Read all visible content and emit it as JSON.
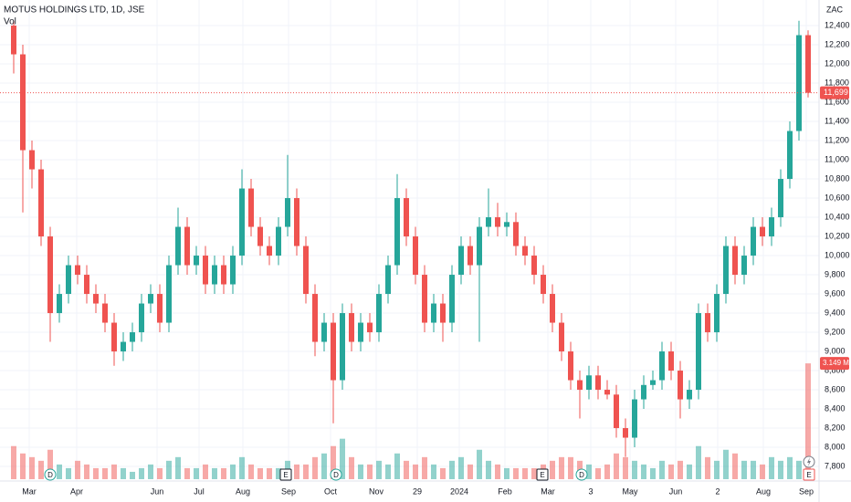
{
  "chart_data": {
    "type": "candlestick",
    "title": "MOTUS HOLDINGS LTD, 1D, JSE",
    "volume_label": "Vol",
    "currency": "ZAC",
    "up_color": "#26a69a",
    "down_color": "#ef5350",
    "grid": true,
    "xlim": [
      -1.5,
      88.2
    ],
    "xticks": [
      {
        "value": 1.7,
        "label": "Mar"
      },
      {
        "value": 6.9,
        "label": "Apr"
      },
      {
        "value": 15.7,
        "label": "Jun"
      },
      {
        "value": 20.3,
        "label": "Jul"
      },
      {
        "value": 25.1,
        "label": "Aug"
      },
      {
        "value": 30.1,
        "label": "Sep"
      },
      {
        "value": 34.7,
        "label": "Oct"
      },
      {
        "value": 39.7,
        "label": "Nov"
      },
      {
        "value": 44.2,
        "label": "29"
      },
      {
        "value": 48.8,
        "label": "2024"
      },
      {
        "value": 53.8,
        "label": "Feb"
      },
      {
        "value": 58.5,
        "label": "Mar"
      },
      {
        "value": 63.2,
        "label": "3"
      },
      {
        "value": 67.5,
        "label": "May"
      },
      {
        "value": 72.5,
        "label": "Jun"
      },
      {
        "value": 77.1,
        "label": "2"
      },
      {
        "value": 82.1,
        "label": "Aug"
      },
      {
        "value": 86.8,
        "label": "Sep"
      }
    ],
    "ylim": [
      7648,
      12667
    ],
    "yticks": [
      {
        "value": 7800,
        "label": "7,800"
      },
      {
        "value": 8000,
        "label": "8,000"
      },
      {
        "value": 8200,
        "label": "8,200"
      },
      {
        "value": 8400,
        "label": "8,400"
      },
      {
        "value": 8600,
        "label": "8,600"
      },
      {
        "value": 8800,
        "label": "8,800"
      },
      {
        "value": 9000,
        "label": "9,000"
      },
      {
        "value": 9200,
        "label": "9,200"
      },
      {
        "value": 9400,
        "label": "9,400"
      },
      {
        "value": 9600,
        "label": "9,600"
      },
      {
        "value": 9800,
        "label": "9,800"
      },
      {
        "value": 10000,
        "label": "10,000"
      },
      {
        "value": 10200,
        "label": "10,200"
      },
      {
        "value": 10400,
        "label": "10,400"
      },
      {
        "value": 10600,
        "label": "10,600"
      },
      {
        "value": 10800,
        "label": "10,800"
      },
      {
        "value": 11000,
        "label": "11,000"
      },
      {
        "value": 11200,
        "label": "11,200"
      },
      {
        "value": 11400,
        "label": "11,400"
      },
      {
        "value": 11600,
        "label": "11,600"
      },
      {
        "value": 11800,
        "label": "11,800"
      },
      {
        "value": 12000,
        "label": "12,000"
      },
      {
        "value": 12200,
        "label": "12,200"
      },
      {
        "value": 12400,
        "label": "12,400"
      }
    ],
    "last_price": {
      "value": 11699,
      "label": "11,699"
    },
    "open": [
      12400,
      12100,
      11100,
      10900,
      10200,
      9400,
      9600,
      9900,
      9800,
      9600,
      9500,
      9300,
      9000,
      9100,
      9200,
      9500,
      9600,
      9300,
      9900,
      10300,
      9900,
      10000,
      9700,
      9900,
      9700,
      10000,
      10700,
      10300,
      10100,
      10000,
      10300,
      10600,
      10100,
      9600,
      9100,
      9300,
      8700,
      9400,
      9100,
      9300,
      9200,
      9600,
      9900,
      10600,
      10200,
      9800,
      9300,
      9500,
      9300,
      9800,
      10100,
      9900,
      10300,
      10400,
      10300,
      10350,
      10100,
      10000,
      9800,
      9600,
      9300,
      9000,
      8700,
      8600,
      8750,
      8600,
      8550,
      8200,
      8100,
      8500,
      8650,
      8700,
      9000,
      8800,
      8500,
      8600,
      9400,
      9200,
      9600,
      10100,
      9800,
      10000,
      10300,
      10200,
      10400,
      10800,
      11300,
      12300
    ],
    "high": [
      12450,
      12200,
      11200,
      11000,
      10300,
      9700,
      10000,
      10000,
      9900,
      9700,
      9600,
      9400,
      9200,
      9300,
      9600,
      9700,
      9700,
      10000,
      10500,
      10400,
      10100,
      10100,
      10000,
      10000,
      10100,
      10900,
      10800,
      10400,
      10200,
      10400,
      11050,
      10700,
      10200,
      9700,
      9400,
      9400,
      9500,
      9500,
      9400,
      9400,
      9700,
      10000,
      10850,
      10700,
      10300,
      9900,
      9600,
      9600,
      9900,
      10200,
      10200,
      10400,
      10700,
      10550,
      10450,
      10450,
      10200,
      10100,
      9900,
      9700,
      9400,
      9100,
      8800,
      8850,
      8850,
      8700,
      8650,
      8300,
      8600,
      8750,
      8800,
      9100,
      9100,
      8900,
      8700,
      9500,
      9500,
      9700,
      10200,
      10200,
      10100,
      10400,
      10400,
      10500,
      10900,
      11400,
      12450,
      12350
    ],
    "low": [
      11900,
      10450,
      10700,
      10100,
      9100,
      9300,
      9500,
      9700,
      9500,
      9400,
      9200,
      8850,
      8900,
      9000,
      9100,
      9400,
      9200,
      9200,
      9800,
      9800,
      9800,
      9600,
      9600,
      9600,
      9600,
      9900,
      10200,
      10000,
      9900,
      9900,
      10200,
      10000,
      9500,
      8950,
      9000,
      8250,
      8600,
      9000,
      9000,
      9100,
      9100,
      9500,
      9800,
      10100,
      9700,
      9200,
      9200,
      9100,
      9200,
      9700,
      9800,
      9100,
      10200,
      10200,
      10200,
      10000,
      9900,
      9700,
      9500,
      9200,
      8900,
      8600,
      8300,
      8500,
      8500,
      8500,
      8100,
      7900,
      8000,
      8400,
      8600,
      8600,
      8700,
      8300,
      8400,
      8500,
      9100,
      9100,
      9500,
      9700,
      9700,
      9900,
      10100,
      10100,
      10300,
      10700,
      11200,
      11650
    ],
    "close": [
      12100,
      11100,
      10900,
      10200,
      9400,
      9600,
      9900,
      9800,
      9600,
      9500,
      9300,
      9000,
      9100,
      9200,
      9500,
      9600,
      9300,
      9900,
      10300,
      9900,
      10000,
      9700,
      9900,
      9700,
      10000,
      10700,
      10300,
      10100,
      10000,
      10300,
      10600,
      10100,
      9600,
      9100,
      9300,
      8700,
      9400,
      9100,
      9300,
      9200,
      9600,
      9900,
      10600,
      10200,
      9800,
      9300,
      9500,
      9300,
      9800,
      10100,
      9900,
      10300,
      10400,
      10300,
      10350,
      10100,
      10000,
      9800,
      9600,
      9300,
      9000,
      8700,
      8600,
      8750,
      8600,
      8550,
      8200,
      8100,
      8500,
      8650,
      8700,
      9000,
      8800,
      8500,
      8600,
      9400,
      9200,
      9600,
      10100,
      9800,
      10000,
      10300,
      10200,
      10400,
      10800,
      11300,
      12300,
      11699
    ],
    "volume": [
      0.9,
      0.7,
      0.6,
      0.5,
      0.8,
      0.4,
      0.3,
      0.5,
      0.4,
      0.3,
      0.3,
      0.4,
      0.3,
      0.2,
      0.3,
      0.4,
      0.3,
      0.5,
      0.6,
      0.3,
      0.3,
      0.4,
      0.3,
      0.3,
      0.4,
      0.6,
      0.4,
      0.3,
      0.3,
      0.3,
      0.5,
      0.4,
      0.4,
      0.6,
      0.7,
      0.9,
      1.1,
      0.6,
      0.4,
      0.4,
      0.5,
      0.4,
      0.7,
      0.5,
      0.4,
      0.6,
      0.4,
      0.3,
      0.5,
      0.6,
      0.4,
      0.8,
      0.5,
      0.4,
      0.3,
      0.3,
      0.3,
      0.3,
      0.4,
      0.5,
      0.6,
      0.6,
      0.5,
      0.4,
      0.3,
      0.4,
      0.7,
      0.6,
      0.5,
      0.4,
      0.3,
      0.5,
      0.4,
      0.5,
      0.4,
      0.9,
      0.6,
      0.5,
      0.8,
      0.7,
      0.5,
      0.5,
      0.4,
      0.6,
      0.5,
      0.6,
      0.5,
      3.149
    ],
    "volume_last_label": "3.149 M",
    "volume_ylim": [
      0,
      3.4
    ],
    "events": [
      {
        "label": "D",
        "x": 4.0
      },
      {
        "label": "E",
        "x": 29.8
      },
      {
        "label": "D",
        "x": 35.3
      },
      {
        "label": "E",
        "x": 57.9
      },
      {
        "label": "D",
        "x": 62.2
      },
      {
        "label": "E",
        "x": 87.1
      }
    ]
  }
}
